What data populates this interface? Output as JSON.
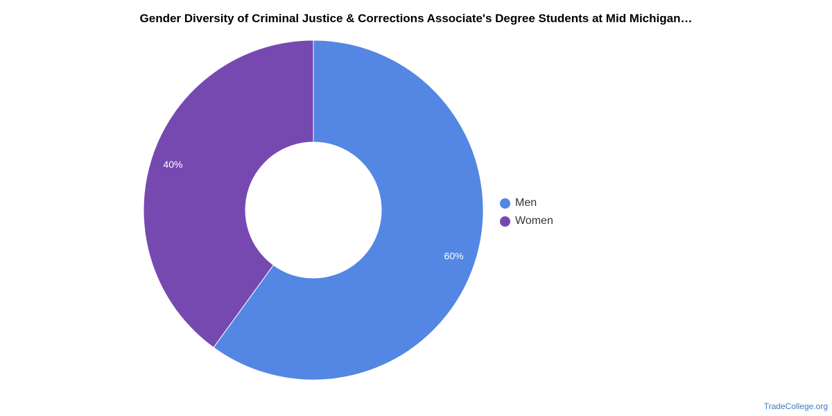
{
  "chart_data": {
    "type": "pie",
    "variant": "donut",
    "title": "Gender Diversity of Criminal Justice & Corrections Associate's Degree Students at Mid Michigan…",
    "categories": [
      "Men",
      "Women"
    ],
    "values": [
      60,
      40
    ],
    "value_labels": [
      "60%",
      "40%"
    ],
    "colors": [
      "#5486e3",
      "#7649b0"
    ],
    "legend_position": "right",
    "start_angle": "top",
    "direction": "clockwise"
  },
  "footer": {
    "credit": "TradeCollege.org"
  }
}
